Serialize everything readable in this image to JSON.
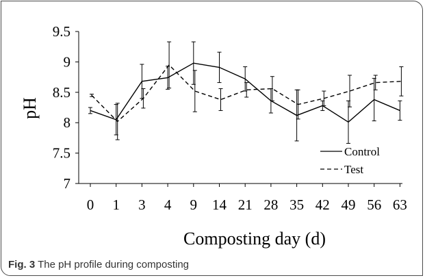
{
  "chart_data": {
    "type": "line",
    "title": "",
    "xlabel": "Composting day (d)",
    "ylabel": "pH",
    "categories": [
      "0",
      "1",
      "3",
      "4",
      "9",
      "14",
      "21",
      "28",
      "35",
      "42",
      "49",
      "56",
      "63"
    ],
    "ylim": [
      7,
      9.5
    ],
    "yticks": [
      "7",
      "7.5",
      "8",
      "8.5",
      "9",
      "9.5"
    ],
    "grid": false,
    "legend_position": "bottom-right",
    "series": [
      {
        "name": "Control",
        "line_style": "solid",
        "values": [
          8.2,
          8.05,
          8.68,
          8.74,
          8.98,
          8.91,
          8.72,
          8.36,
          8.12,
          8.28,
          8.01,
          8.38,
          8.2
        ],
        "errors": [
          0.05,
          0.25,
          0.28,
          0.19,
          0.35,
          0.25,
          0.2,
          0.2,
          0.42,
          0.08,
          0.35,
          0.35,
          0.16
        ]
      },
      {
        "name": "Test",
        "line_style": "dashed",
        "values": [
          8.45,
          8.02,
          8.4,
          8.95,
          8.52,
          8.38,
          8.54,
          8.56,
          8.3,
          8.4,
          8.52,
          8.66,
          8.68
        ],
        "errors": [
          0.02,
          0.3,
          0.16,
          0.38,
          0.34,
          0.18,
          0.12,
          0.2,
          0.24,
          0.12,
          0.26,
          0.12,
          0.24
        ]
      }
    ]
  },
  "caption": {
    "label": "Fig. 3",
    "text": " The pH profile during composting"
  },
  "colors": {
    "line": "#000000",
    "frame": "#4a4a4a"
  }
}
